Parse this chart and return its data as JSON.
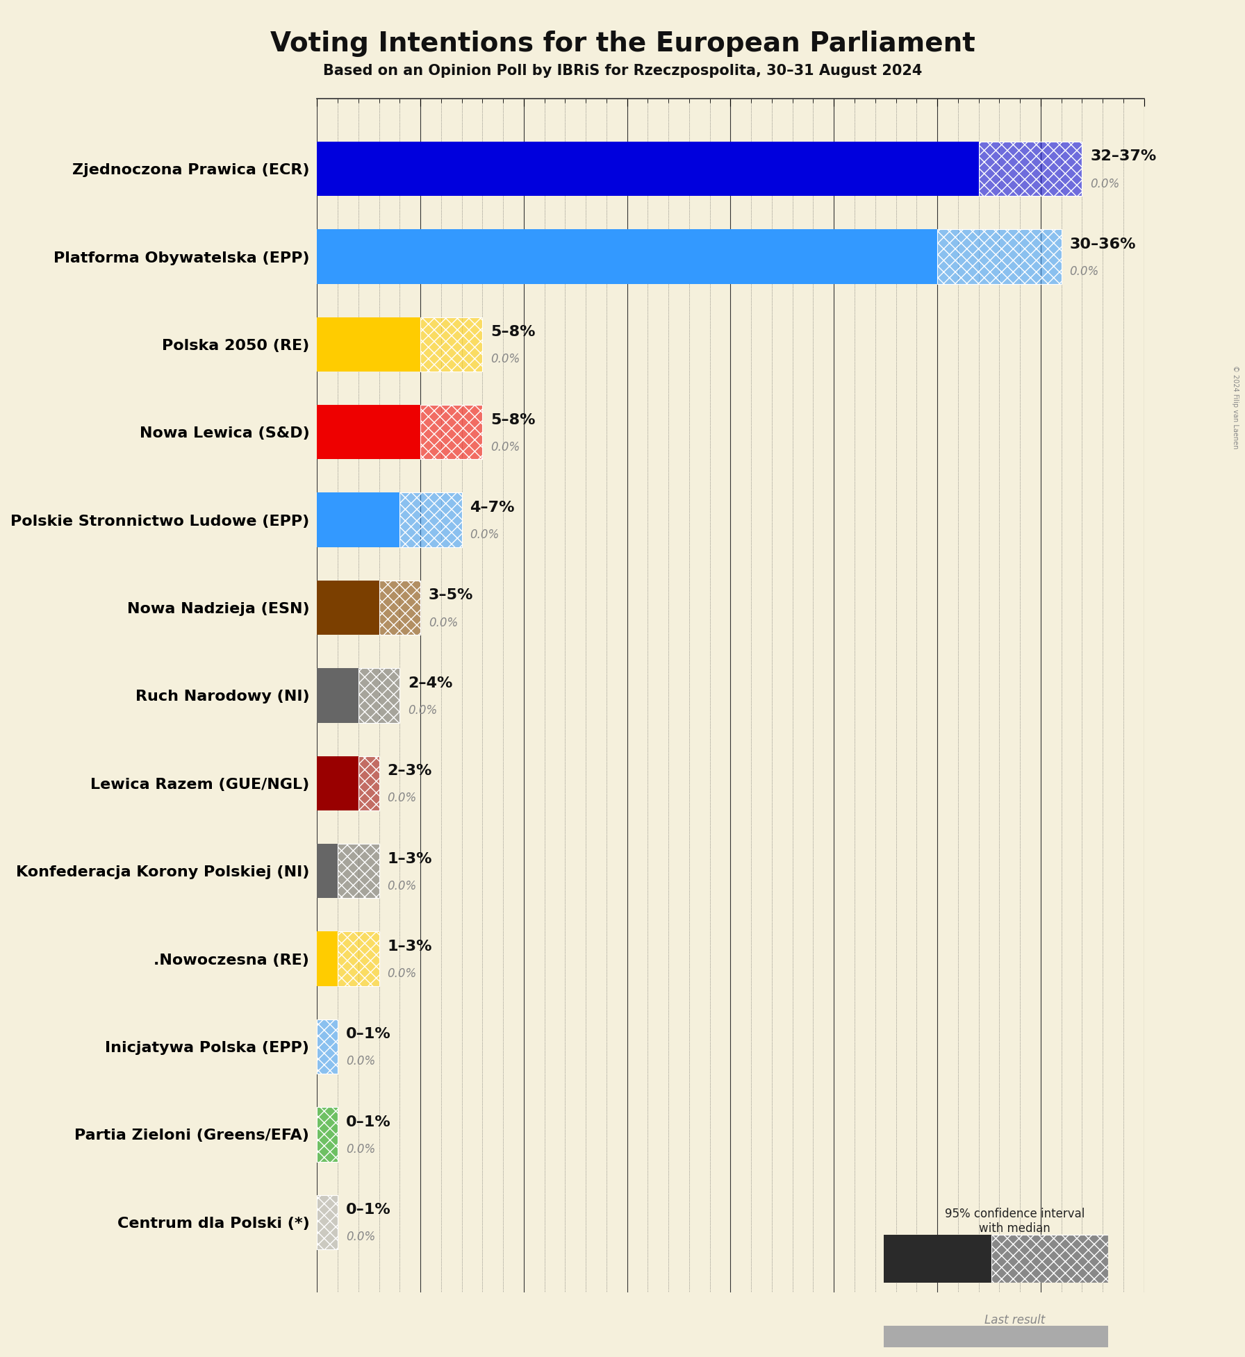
{
  "title": "Voting Intentions for the European Parliament",
  "subtitle": "Based on an Opinion Poll by IBRiS for Rzeczpospolita, 30–31 August 2024",
  "copyright": "© 2024 Filip van Laenen",
  "background_color": "#f5f0dc",
  "parties": [
    {
      "name": "Zjednoczona Prawica (ECR)",
      "low": 32,
      "high": 37,
      "median": 34.5,
      "last": 0.0,
      "color": "#0000dd"
    },
    {
      "name": "Platforma Obywatelska (EPP)",
      "low": 30,
      "high": 36,
      "median": 33.0,
      "last": 0.0,
      "color": "#3399ff"
    },
    {
      "name": "Polska 2050 (RE)",
      "low": 5,
      "high": 8,
      "median": 6.5,
      "last": 0.0,
      "color": "#ffcc00"
    },
    {
      "name": "Nowa Lewica (S&D)",
      "low": 5,
      "high": 8,
      "median": 6.5,
      "last": 0.0,
      "color": "#ee0000"
    },
    {
      "name": "Polskie Stronnictwo Ludowe (EPP)",
      "low": 4,
      "high": 7,
      "median": 5.5,
      "last": 0.0,
      "color": "#3399ff"
    },
    {
      "name": "Nowa Nadzieja (ESN)",
      "low": 3,
      "high": 5,
      "median": 4.0,
      "last": 0.0,
      "color": "#7b3f00"
    },
    {
      "name": "Ruch Narodowy (NI)",
      "low": 2,
      "high": 4,
      "median": 3.0,
      "last": 0.0,
      "color": "#666666"
    },
    {
      "name": "Lewica Razem (GUE/NGL)",
      "low": 2,
      "high": 3,
      "median": 2.5,
      "last": 0.0,
      "color": "#990000"
    },
    {
      "name": "Konfederacja Korony Polskiej (NI)",
      "low": 1,
      "high": 3,
      "median": 2.0,
      "last": 0.0,
      "color": "#666666"
    },
    {
      "name": ".Nowoczesna (RE)",
      "low": 1,
      "high": 3,
      "median": 2.0,
      "last": 0.0,
      "color": "#ffcc00"
    },
    {
      "name": "Inicjatywa Polska (EPP)",
      "low": 0,
      "high": 1,
      "median": 0.5,
      "last": 0.0,
      "color": "#3399ff"
    },
    {
      "name": "Partia Zieloni (Greens/EFA)",
      "low": 0,
      "high": 1,
      "median": 0.5,
      "last": 0.0,
      "color": "#009900"
    },
    {
      "name": "Centrum dla Polski (*)",
      "low": 0,
      "high": 1,
      "median": 0.5,
      "last": 0.0,
      "color": "#aaaaaa"
    }
  ],
  "xlim": [
    0,
    40
  ],
  "label_fontsize": 16,
  "title_fontsize": 28,
  "subtitle_fontsize": 15,
  "bar_height": 0.62,
  "range_label_fontsize": 16,
  "last_label_fontsize": 12
}
